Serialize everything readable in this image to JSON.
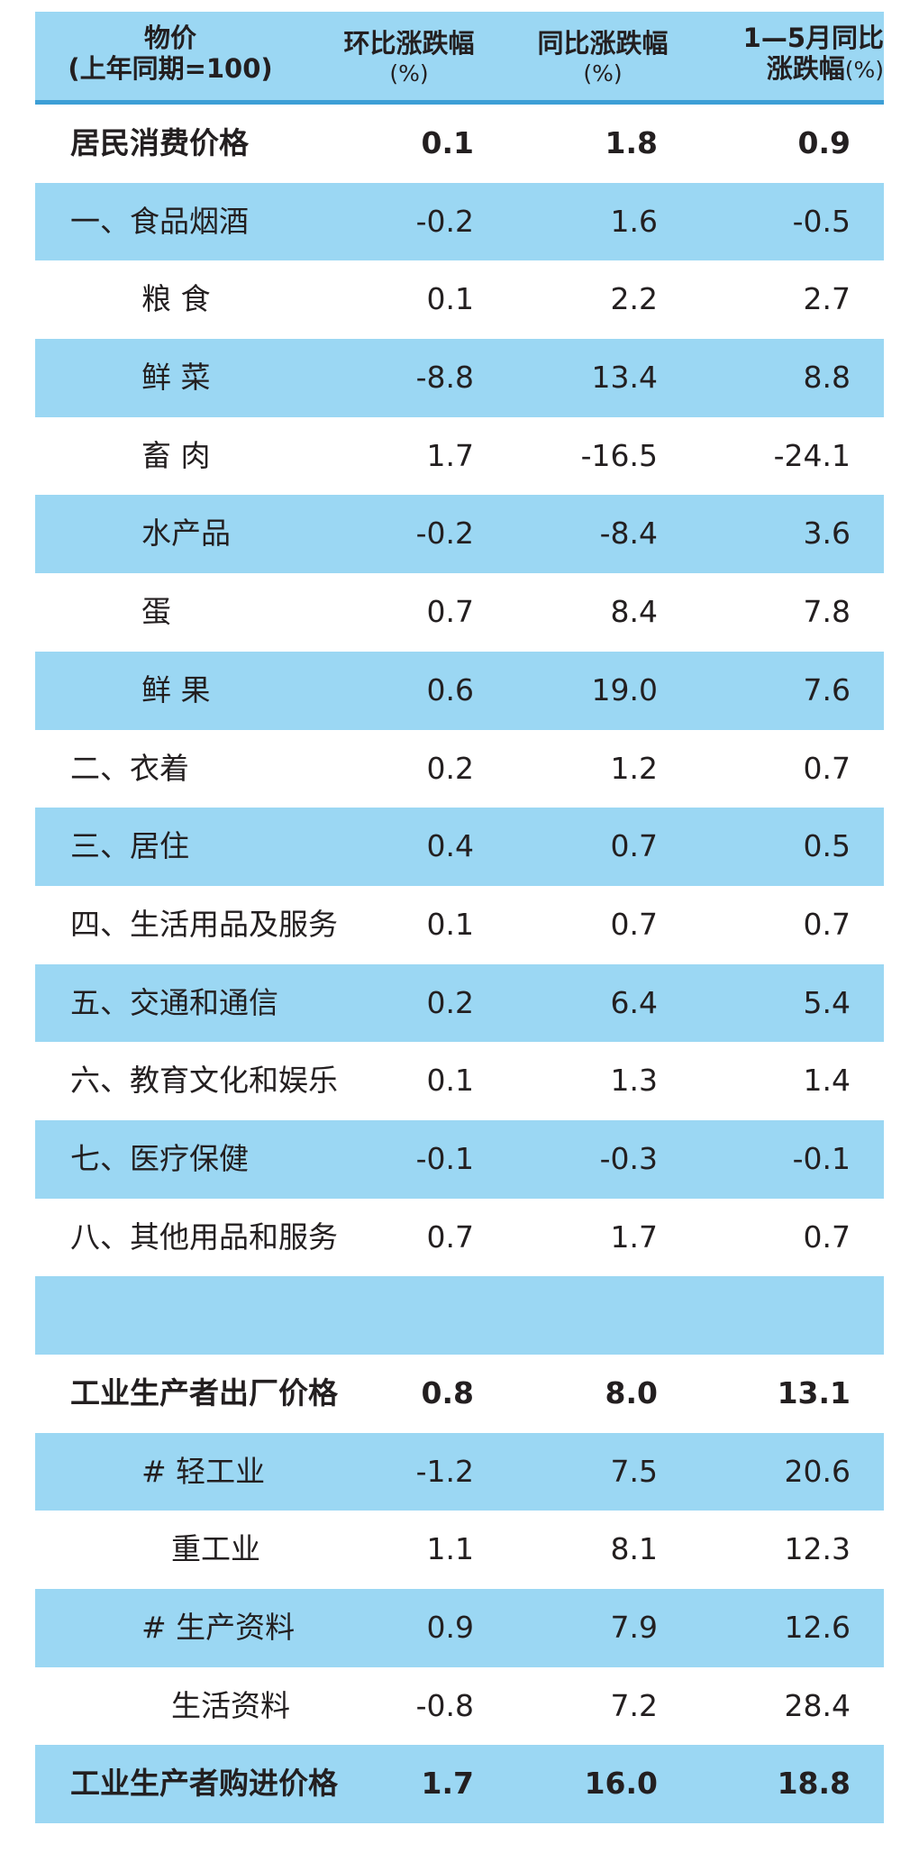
{
  "header": {
    "col0": [
      "物价",
      "(上年同期=100)"
    ],
    "col1": [
      "环比涨跌幅",
      "(%)"
    ],
    "col2": [
      "同比涨跌幅",
      "(%)"
    ],
    "col3": [
      "1—5月同比",
      "涨跌幅",
      "(%)"
    ]
  },
  "colors": {
    "row_blue": "#9bd7f3",
    "header_rule": "#3d9fd6",
    "text": "#231f20"
  },
  "rows": [
    {
      "label": "居民消费价格",
      "mom": "0.1",
      "yoy": "1.8",
      "ytd": "0.9",
      "bold": true,
      "indent": 0
    },
    {
      "label": "一、食品烟酒",
      "mom": "-0.2",
      "yoy": "1.6",
      "ytd": "-0.5",
      "indent": 0
    },
    {
      "label": "粮  食",
      "mom": "0.1",
      "yoy": "2.2",
      "ytd": "2.7",
      "indent": 1
    },
    {
      "label": "鲜  菜",
      "mom": "-8.8",
      "yoy": "13.4",
      "ytd": "8.8",
      "indent": 1
    },
    {
      "label": "畜  肉",
      "mom": "1.7",
      "yoy": "-16.5",
      "ytd": "-24.1",
      "indent": 1
    },
    {
      "label": "水产品",
      "mom": "-0.2",
      "yoy": "-8.4",
      "ytd": "3.6",
      "indent": 1
    },
    {
      "label": "蛋",
      "mom": "0.7",
      "yoy": "8.4",
      "ytd": "7.8",
      "indent": 1
    },
    {
      "label": "鲜  果",
      "mom": "0.6",
      "yoy": "19.0",
      "ytd": "7.6",
      "indent": 1
    },
    {
      "label": "二、衣着",
      "mom": "0.2",
      "yoy": "1.2",
      "ytd": "0.7",
      "indent": 0
    },
    {
      "label": "三、居住",
      "mom": "0.4",
      "yoy": "0.7",
      "ytd": "0.5",
      "indent": 0
    },
    {
      "label": "四、生活用品及服务",
      "mom": "0.1",
      "yoy": "0.7",
      "ytd": "0.7",
      "indent": 0
    },
    {
      "label": "五、交通和通信",
      "mom": "0.2",
      "yoy": "6.4",
      "ytd": "5.4",
      "indent": 0
    },
    {
      "label": "六、教育文化和娱乐",
      "mom": "0.1",
      "yoy": "1.3",
      "ytd": "1.4",
      "indent": 0
    },
    {
      "label": "七、医疗保健",
      "mom": "-0.1",
      "yoy": "-0.3",
      "ytd": "-0.1",
      "indent": 0
    },
    {
      "label": "八、其他用品和服务",
      "mom": "0.7",
      "yoy": "1.7",
      "ytd": "0.7",
      "indent": 0
    },
    {
      "label": "",
      "mom": "",
      "yoy": "",
      "ytd": "",
      "indent": 0
    },
    {
      "label": "工业生产者出厂价格",
      "mom": "0.8",
      "yoy": "8.0",
      "ytd": "13.1",
      "bold": true,
      "indent": 0
    },
    {
      "label": "# 轻工业",
      "mom": "-1.2",
      "yoy": "7.5",
      "ytd": "20.6",
      "indent": 1
    },
    {
      "label": "重工业",
      "mom": "1.1",
      "yoy": "8.1",
      "ytd": "12.3",
      "indent": 2
    },
    {
      "label": "# 生产资料",
      "mom": "0.9",
      "yoy": "7.9",
      "ytd": "12.6",
      "indent": 1
    },
    {
      "label": "生活资料",
      "mom": "-0.8",
      "yoy": "7.2",
      "ytd": "28.4",
      "indent": 2
    },
    {
      "label": "工业生产者购进价格",
      "mom": "1.7",
      "yoy": "16.0",
      "ytd": "18.8",
      "bold": true,
      "indent": 0
    }
  ]
}
